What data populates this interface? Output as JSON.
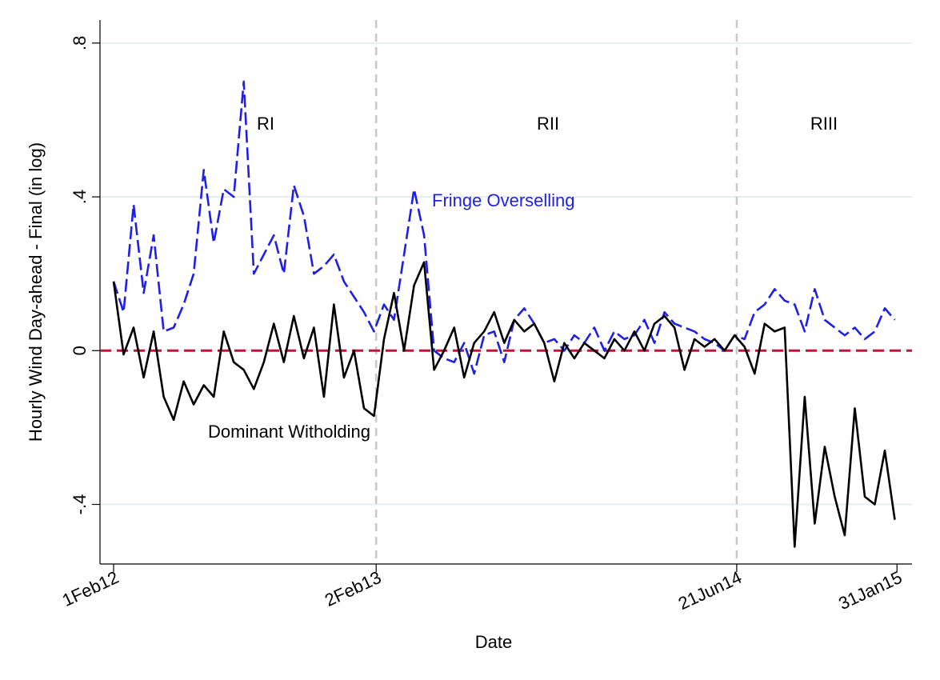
{
  "chart_data": {
    "type": "line",
    "x_label": "Date",
    "y_label": "Hourly Wind Day-ahead - Final (in log)",
    "xlim": [
      19005,
      20140
    ],
    "ylim": [
      -0.555,
      0.86
    ],
    "xticks": [
      {
        "value": 19024,
        "label": "1Feb12"
      },
      {
        "value": 19391,
        "label": "2Feb13"
      },
      {
        "value": 19895,
        "label": "21Jun14"
      },
      {
        "value": 20119,
        "label": "31Jan15"
      }
    ],
    "yticks": [
      {
        "value": -0.4,
        "label": "-.4"
      },
      0,
      {
        "value": 0.4,
        "label": ".4"
      },
      {
        "value": 0.8,
        "label": ".8"
      }
    ],
    "grid": true,
    "xline": [
      19391,
      19895
    ],
    "xline_color": "#c8c8c8",
    "hline": 0,
    "hline_color": "#c0143c",
    "annotations": [
      "RI",
      "RII",
      "RIII"
    ],
    "x": [
      19024,
      19038,
      19052,
      19066,
      19080,
      19094,
      19108,
      19122,
      19136,
      19150,
      19164,
      19178,
      19192,
      19206,
      19220,
      19234,
      19248,
      19262,
      19276,
      19290,
      19304,
      19318,
      19332,
      19346,
      19360,
      19374,
      19388,
      19402,
      19416,
      19430,
      19444,
      19458,
      19472,
      19486,
      19500,
      19514,
      19528,
      19542,
      19556,
      19570,
      19584,
      19598,
      19612,
      19626,
      19640,
      19654,
      19668,
      19682,
      19696,
      19710,
      19724,
      19738,
      19752,
      19766,
      19780,
      19794,
      19808,
      19822,
      19836,
      19850,
      19864,
      19878,
      19892,
      19906,
      19920,
      19934,
      19948,
      19962,
      19976,
      19990,
      20004,
      20018,
      20032,
      20046,
      20060,
      20074,
      20088,
      20102,
      20116
    ],
    "series": [
      {
        "name": "Fringe Overselling",
        "color": "#1f1fe6",
        "dash": "dash",
        "values": [
          0.18,
          0.1,
          0.38,
          0.15,
          0.3,
          0.05,
          0.06,
          0.12,
          0.2,
          0.47,
          0.28,
          0.42,
          0.4,
          0.7,
          0.2,
          0.25,
          0.3,
          0.2,
          0.43,
          0.35,
          0.2,
          0.22,
          0.25,
          0.18,
          0.14,
          0.1,
          0.05,
          0.12,
          0.08,
          0.25,
          0.42,
          0.3,
          0.0,
          -0.02,
          -0.03,
          0.02,
          -0.06,
          0.04,
          0.05,
          -0.03,
          0.08,
          0.11,
          0.07,
          0.02,
          0.03,
          0.0,
          0.04,
          0.02,
          0.06,
          0.0,
          0.05,
          0.03,
          0.04,
          0.08,
          0.02,
          0.1,
          0.07,
          0.06,
          0.05,
          0.03,
          0.02,
          0.0,
          0.04,
          0.03,
          0.1,
          0.12,
          0.16,
          0.13,
          0.12,
          0.05,
          0.16,
          0.08,
          0.06,
          0.04,
          0.06,
          0.03,
          0.05,
          0.11,
          0.08
        ]
      },
      {
        "name": "Dominant Witholding",
        "color": "#000000",
        "dash": "solid",
        "values": [
          0.18,
          -0.01,
          0.06,
          -0.07,
          0.05,
          -0.12,
          -0.18,
          -0.08,
          -0.14,
          -0.09,
          -0.12,
          0.05,
          -0.03,
          -0.05,
          -0.1,
          -0.03,
          0.07,
          -0.03,
          0.09,
          -0.02,
          0.06,
          -0.12,
          0.12,
          -0.07,
          0.0,
          -0.15,
          -0.17,
          0.03,
          0.15,
          0.0,
          0.17,
          0.23,
          -0.05,
          0.0,
          0.06,
          -0.07,
          0.02,
          0.05,
          0.1,
          0.02,
          0.08,
          0.05,
          0.07,
          0.02,
          -0.08,
          0.02,
          -0.02,
          0.02,
          0.0,
          -0.02,
          0.03,
          0.0,
          0.05,
          0.0,
          0.07,
          0.09,
          0.06,
          -0.05,
          0.03,
          0.01,
          0.03,
          0.0,
          0.04,
          0.01,
          -0.06,
          0.07,
          0.05,
          0.06,
          -0.51,
          -0.12,
          -0.45,
          -0.25,
          -0.38,
          -0.48,
          -0.15,
          -0.38,
          -0.4,
          -0.26,
          -0.44
        ]
      }
    ]
  }
}
